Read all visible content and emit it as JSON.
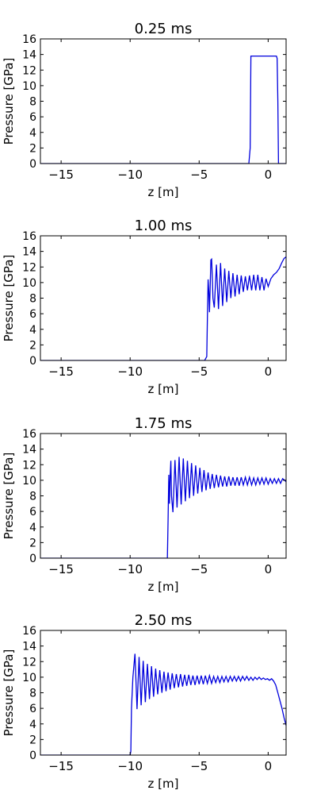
{
  "chart_data": [
    {
      "type": "line",
      "title": "0.25 ms",
      "xlabel": "z [m]",
      "ylabel": "Pressure [GPa]",
      "xlim": [
        -16.5,
        1.3
      ],
      "ylim": [
        0,
        16
      ],
      "xticks": [
        -15,
        -10,
        -5,
        0
      ],
      "yticks": [
        0,
        2,
        4,
        6,
        8,
        10,
        12,
        14,
        16
      ],
      "grid": false,
      "legend": "none",
      "series": [
        {
          "color": "#0000dd",
          "x": [
            -16.5,
            -1.4,
            -1.3,
            -1.25,
            -1.2,
            0.6,
            0.65,
            0.7,
            0.75,
            1.3
          ],
          "y": [
            0,
            0,
            2,
            13.8,
            13.8,
            13.8,
            13.5,
            8,
            0,
            0
          ]
        }
      ]
    },
    {
      "type": "line",
      "title": "1.00 ms",
      "xlabel": "z [m]",
      "ylabel": "Pressure [GPa]",
      "xlim": [
        -16.5,
        1.3
      ],
      "ylim": [
        0,
        16
      ],
      "xticks": [
        -15,
        -10,
        -5,
        0
      ],
      "yticks": [
        0,
        2,
        4,
        6,
        8,
        10,
        12,
        14,
        16
      ],
      "grid": false,
      "legend": "none",
      "series": [
        {
          "color": "#0000dd",
          "x": [
            -16.5,
            -4.6,
            -4.45,
            -4.4,
            -4.35,
            -4.3,
            -4.25,
            -4.2,
            -4.15,
            -4.1,
            -4.05,
            -4.0,
            -3.9,
            -3.75,
            -3.6,
            -3.45,
            -3.3,
            -3.15,
            -3.0,
            -2.85,
            -2.7,
            -2.55,
            -2.4,
            -2.25,
            -2.1,
            -1.95,
            -1.8,
            -1.65,
            -1.5,
            -1.35,
            -1.2,
            -1.05,
            -0.9,
            -0.75,
            -0.6,
            -0.45,
            -0.3,
            -0.15,
            0.0,
            0.2,
            0.4,
            0.6,
            0.8,
            1.0,
            1.15,
            1.3
          ],
          "y": [
            0,
            0,
            0.5,
            5.5,
            10.4,
            8.8,
            6.2,
            9.5,
            12.9,
            13.0,
            11.0,
            8.0,
            6.8,
            12.3,
            6.6,
            12.5,
            7.0,
            11.8,
            7.5,
            11.5,
            8.0,
            11.2,
            8.2,
            11.0,
            8.5,
            10.9,
            8.8,
            10.8,
            9.0,
            10.9,
            9.0,
            11.0,
            9.0,
            11.0,
            9.0,
            10.7,
            9.0,
            10.5,
            9.5,
            10.5,
            11.0,
            11.3,
            11.8,
            12.6,
            13.1,
            13.3
          ]
        }
      ]
    },
    {
      "type": "line",
      "title": "1.75 ms",
      "xlabel": "z [m]",
      "ylabel": "Pressure [GPa]",
      "xlim": [
        -16.5,
        1.3
      ],
      "ylim": [
        0,
        16
      ],
      "xticks": [
        -15,
        -10,
        -5,
        0
      ],
      "yticks": [
        0,
        2,
        4,
        6,
        8,
        10,
        12,
        14,
        16
      ],
      "grid": false,
      "legend": "none",
      "series": [
        {
          "color": "#0000dd",
          "x": [
            -16.5,
            -7.3,
            -7.25,
            -7.2,
            -7.15,
            -7.1,
            -7.05,
            -7.0,
            -6.9,
            -6.75,
            -6.6,
            -6.45,
            -6.3,
            -6.15,
            -6.0,
            -5.85,
            -5.7,
            -5.55,
            -5.4,
            -5.25,
            -5.1,
            -4.95,
            -4.8,
            -4.65,
            -4.5,
            -4.35,
            -4.2,
            -4.05,
            -3.9,
            -3.75,
            -3.6,
            -3.45,
            -3.3,
            -3.15,
            -3.0,
            -2.85,
            -2.7,
            -2.55,
            -2.4,
            -2.25,
            -2.1,
            -1.95,
            -1.8,
            -1.65,
            -1.5,
            -1.35,
            -1.2,
            -1.05,
            -0.9,
            -0.75,
            -0.6,
            -0.45,
            -0.3,
            -0.15,
            0.0,
            0.15,
            0.3,
            0.45,
            0.6,
            0.75,
            0.9,
            1.05,
            1.2,
            1.3
          ],
          "y": [
            0,
            0,
            5.0,
            10.7,
            7.0,
            10.5,
            12.5,
            8.0,
            5.9,
            12.6,
            6.5,
            13.0,
            6.9,
            12.8,
            7.3,
            12.5,
            7.7,
            12.2,
            8.0,
            11.9,
            8.3,
            11.6,
            8.5,
            11.3,
            8.7,
            11.0,
            8.9,
            10.8,
            9.0,
            10.7,
            9.1,
            10.6,
            9.2,
            10.5,
            9.2,
            10.5,
            9.3,
            10.4,
            9.3,
            10.4,
            9.3,
            10.4,
            9.4,
            10.4,
            9.4,
            10.4,
            9.4,
            10.3,
            9.4,
            10.3,
            9.5,
            10.3,
            9.5,
            10.3,
            9.5,
            10.2,
            9.6,
            10.2,
            9.6,
            10.2,
            9.6,
            10.2,
            10.0,
            9.8
          ]
        }
      ]
    },
    {
      "type": "line",
      "title": "2.50 ms",
      "xlabel": "z [m]",
      "ylabel": "Pressure [GPa]",
      "xlim": [
        -16.5,
        1.3
      ],
      "ylim": [
        0,
        16
      ],
      "xticks": [
        -15,
        -10,
        -5,
        0
      ],
      "yticks": [
        0,
        2,
        4,
        6,
        8,
        10,
        12,
        14,
        16
      ],
      "grid": false,
      "legend": "none",
      "series": [
        {
          "color": "#0000dd",
          "x": [
            -16.5,
            -10.0,
            -9.95,
            -9.9,
            -9.8,
            -9.65,
            -9.5,
            -9.35,
            -9.2,
            -9.05,
            -8.9,
            -8.75,
            -8.6,
            -8.45,
            -8.3,
            -8.15,
            -8.0,
            -7.85,
            -7.7,
            -7.55,
            -7.4,
            -7.25,
            -7.1,
            -6.95,
            -6.8,
            -6.65,
            -6.5,
            -6.35,
            -6.2,
            -6.05,
            -5.9,
            -5.75,
            -5.6,
            -5.45,
            -5.3,
            -5.15,
            -5.0,
            -4.85,
            -4.7,
            -4.55,
            -4.4,
            -4.25,
            -4.1,
            -3.95,
            -3.8,
            -3.65,
            -3.5,
            -3.35,
            -3.2,
            -3.05,
            -2.9,
            -2.75,
            -2.6,
            -2.45,
            -2.3,
            -2.15,
            -2.0,
            -1.85,
            -1.7,
            -1.55,
            -1.4,
            -1.25,
            -1.1,
            -0.95,
            -0.8,
            -0.65,
            -0.5,
            -0.35,
            -0.2,
            -0.05,
            0.1,
            0.25,
            0.4,
            0.55,
            0.7,
            0.85,
            1.0,
            1.15,
            1.3
          ],
          "y": [
            0,
            0,
            0.5,
            6.0,
            10.0,
            13.0,
            5.9,
            12.6,
            6.4,
            12.1,
            6.8,
            11.7,
            7.2,
            11.4,
            7.5,
            11.1,
            7.8,
            10.9,
            8.0,
            10.7,
            8.2,
            10.6,
            8.4,
            10.5,
            8.6,
            10.4,
            8.7,
            10.4,
            8.8,
            10.3,
            8.9,
            10.3,
            9.0,
            10.2,
            9.0,
            10.2,
            9.1,
            10.2,
            9.1,
            10.2,
            9.2,
            10.2,
            9.2,
            10.1,
            9.3,
            10.1,
            9.3,
            10.1,
            9.4,
            10.1,
            9.4,
            10.1,
            9.5,
            10.1,
            9.5,
            10.1,
            9.5,
            10.1,
            9.6,
            10.1,
            9.6,
            10.0,
            9.6,
            10.0,
            9.7,
            10.0,
            9.7,
            9.9,
            9.7,
            9.8,
            9.6,
            9.8,
            9.5,
            9.0,
            8.0,
            7.0,
            6.0,
            4.8,
            3.8
          ]
        }
      ]
    }
  ]
}
